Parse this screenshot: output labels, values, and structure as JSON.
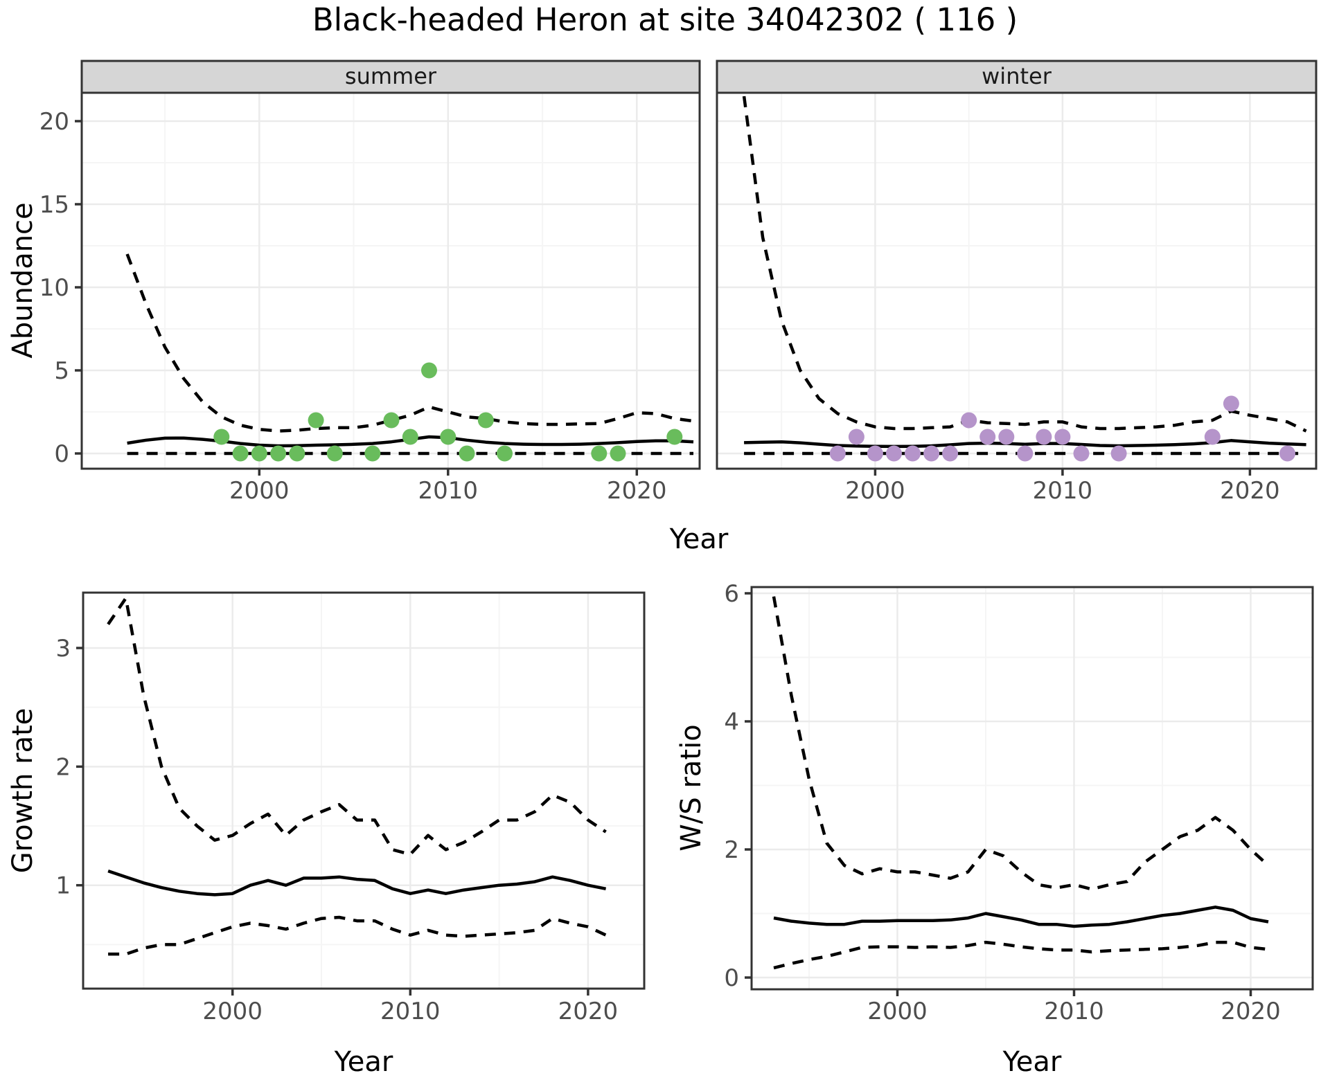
{
  "title": "Black-headed Heron at site 34042302 ( 116 )",
  "shared_x_label": "Year",
  "colors": {
    "summer_points": "#69bc5c",
    "winter_points": "#b594ca",
    "fit_line": "#000000",
    "strip_fill": "#d6d6d6",
    "panel_border": "#333333",
    "grid_major": "#ebebeb",
    "grid_minor": "#f5f5f5",
    "tick_text": "#4d4d4d"
  },
  "chart_data": [
    {
      "id": "abundance-summer",
      "type": "scatter",
      "facet": "summer",
      "xlabel": "Year",
      "ylabel": "Abundance",
      "x_ticks": [
        2000,
        2010,
        2020
      ],
      "y_ticks": [
        0,
        5,
        10,
        15,
        20
      ],
      "ylim": [
        0,
        21.5
      ],
      "grid": true,
      "points": {
        "x": [
          1998,
          1999,
          2000,
          2001,
          2002,
          2003,
          2004,
          2006,
          2007,
          2008,
          2009,
          2010,
          2011,
          2012,
          2013,
          2018,
          2019,
          2022
        ],
        "y": [
          1,
          0,
          0,
          0,
          0,
          2,
          0,
          0,
          2,
          1,
          5,
          1,
          0,
          2,
          0,
          0,
          0,
          1
        ]
      },
      "years": [
        1993,
        1994,
        1995,
        1996,
        1997,
        1998,
        1999,
        2000,
        2001,
        2002,
        2003,
        2004,
        2005,
        2006,
        2007,
        2008,
        2009,
        2010,
        2011,
        2012,
        2013,
        2014,
        2015,
        2016,
        2017,
        2018,
        2019,
        2020,
        2021,
        2022,
        2023
      ],
      "series": [
        {
          "name": "median",
          "style": "solid",
          "values": [
            0.62,
            0.8,
            0.92,
            0.93,
            0.85,
            0.74,
            0.6,
            0.5,
            0.46,
            0.47,
            0.5,
            0.52,
            0.55,
            0.6,
            0.7,
            0.85,
            1.0,
            0.95,
            0.8,
            0.68,
            0.6,
            0.56,
            0.54,
            0.54,
            0.56,
            0.6,
            0.65,
            0.72,
            0.76,
            0.76,
            0.7
          ]
        },
        {
          "name": "upper_95ci",
          "style": "dashed",
          "values": [
            12.0,
            9.0,
            6.4,
            4.5,
            3.1,
            2.2,
            1.7,
            1.45,
            1.35,
            1.4,
            1.5,
            1.55,
            1.55,
            1.7,
            2.0,
            2.3,
            2.8,
            2.5,
            2.2,
            2.1,
            1.9,
            1.8,
            1.75,
            1.75,
            1.78,
            1.8,
            2.1,
            2.45,
            2.4,
            2.1,
            1.95
          ]
        },
        {
          "name": "lower_95ci",
          "style": "dashed",
          "values": [
            0,
            0,
            0,
            0,
            0,
            0,
            0,
            0,
            0,
            0,
            0,
            0,
            0,
            0,
            0,
            0,
            0,
            0,
            0,
            0,
            0,
            0,
            0,
            0,
            0,
            0,
            0,
            0,
            0,
            0,
            0
          ]
        }
      ]
    },
    {
      "id": "abundance-winter",
      "type": "scatter",
      "facet": "winter",
      "xlabel": "Year",
      "ylabel": "Abundance",
      "x_ticks": [
        2000,
        2010,
        2020
      ],
      "y_ticks": [
        0,
        5,
        10,
        15,
        20
      ],
      "ylim": [
        0,
        21.5
      ],
      "grid": true,
      "points": {
        "x": [
          1998,
          1999,
          2000,
          2001,
          2002,
          2003,
          2004,
          2005,
          2006,
          2007,
          2008,
          2009,
          2010,
          2011,
          2013,
          2018,
          2019,
          2022
        ],
        "y": [
          0,
          1,
          0,
          0,
          0,
          0,
          0,
          2,
          1,
          1,
          0,
          1,
          1,
          0,
          0,
          1,
          3,
          0
        ]
      },
      "years": [
        1993,
        1994,
        1995,
        1996,
        1997,
        1998,
        1999,
        2000,
        2001,
        2002,
        2003,
        2004,
        2005,
        2006,
        2007,
        2008,
        2009,
        2010,
        2011,
        2012,
        2013,
        2014,
        2015,
        2016,
        2017,
        2018,
        2019,
        2020,
        2021,
        2022,
        2023
      ],
      "series": [
        {
          "name": "median",
          "style": "solid",
          "values": [
            0.65,
            0.68,
            0.7,
            0.64,
            0.56,
            0.48,
            0.45,
            0.43,
            0.42,
            0.43,
            0.46,
            0.52,
            0.6,
            0.62,
            0.6,
            0.55,
            0.6,
            0.6,
            0.54,
            0.48,
            0.46,
            0.48,
            0.5,
            0.53,
            0.58,
            0.65,
            0.78,
            0.7,
            0.62,
            0.57,
            0.53
          ]
        },
        {
          "name": "upper_95ci",
          "style": "dashed",
          "values": [
            21.5,
            13.0,
            8.0,
            5.0,
            3.3,
            2.4,
            1.9,
            1.6,
            1.5,
            1.5,
            1.55,
            1.6,
            2.0,
            1.85,
            1.8,
            1.75,
            1.9,
            1.9,
            1.6,
            1.5,
            1.5,
            1.55,
            1.6,
            1.7,
            1.9,
            2.0,
            2.55,
            2.3,
            2.1,
            1.9,
            1.35
          ]
        },
        {
          "name": "lower_95ci",
          "style": "dashed",
          "values": [
            0,
            0,
            0,
            0,
            0,
            0,
            0,
            0,
            0,
            0,
            0,
            0,
            0,
            0,
            0,
            0,
            0,
            0,
            0,
            0,
            0,
            0,
            0,
            0,
            0,
            0,
            0,
            0,
            0,
            0,
            0
          ]
        }
      ]
    },
    {
      "id": "growth-rate",
      "type": "line",
      "facet": null,
      "xlabel": "Year",
      "ylabel": "Growth rate",
      "x_ticks": [
        2000,
        2010,
        2020
      ],
      "y_ticks": [
        1,
        2,
        3
      ],
      "ylim": [
        0.13,
        3.45
      ],
      "grid": true,
      "years": [
        1993,
        1994,
        1995,
        1996,
        1997,
        1998,
        1999,
        2000,
        2001,
        2002,
        2003,
        2004,
        2005,
        2006,
        2007,
        2008,
        2009,
        2010,
        2011,
        2012,
        2013,
        2014,
        2015,
        2016,
        2017,
        2018,
        2019,
        2020,
        2021
      ],
      "series": [
        {
          "name": "median",
          "style": "solid",
          "values": [
            1.12,
            1.07,
            1.02,
            0.98,
            0.95,
            0.93,
            0.92,
            0.93,
            1.0,
            1.04,
            1.0,
            1.06,
            1.06,
            1.07,
            1.05,
            1.04,
            0.97,
            0.93,
            0.96,
            0.93,
            0.96,
            0.98,
            1.0,
            1.01,
            1.03,
            1.07,
            1.04,
            1.0,
            0.97
          ]
        },
        {
          "name": "upper_95ci",
          "style": "dashed",
          "values": [
            3.2,
            3.42,
            2.6,
            2.0,
            1.65,
            1.5,
            1.38,
            1.42,
            1.52,
            1.6,
            1.42,
            1.55,
            1.62,
            1.68,
            1.55,
            1.55,
            1.3,
            1.26,
            1.42,
            1.3,
            1.36,
            1.45,
            1.55,
            1.55,
            1.62,
            1.76,
            1.7,
            1.55,
            1.45
          ]
        },
        {
          "name": "lower_95ci",
          "style": "dashed",
          "values": [
            0.42,
            0.42,
            0.47,
            0.5,
            0.5,
            0.55,
            0.6,
            0.65,
            0.68,
            0.66,
            0.63,
            0.68,
            0.72,
            0.73,
            0.7,
            0.7,
            0.63,
            0.58,
            0.62,
            0.58,
            0.57,
            0.58,
            0.59,
            0.6,
            0.62,
            0.72,
            0.68,
            0.65,
            0.58
          ]
        }
      ]
    },
    {
      "id": "ws-ratio",
      "type": "line",
      "facet": null,
      "xlabel": "Year",
      "ylabel": "W/S ratio",
      "x_ticks": [
        2000,
        2010,
        2020
      ],
      "y_ticks": [
        0,
        2,
        4,
        6
      ],
      "ylim": [
        -0.2,
        6.3
      ],
      "grid": true,
      "years": [
        1993,
        1994,
        1995,
        1996,
        1997,
        1998,
        1999,
        2000,
        2001,
        2002,
        2003,
        2004,
        2005,
        2006,
        2007,
        2008,
        2009,
        2010,
        2011,
        2012,
        2013,
        2014,
        2015,
        2016,
        2017,
        2018,
        2019,
        2020,
        2021
      ],
      "series": [
        {
          "name": "median",
          "style": "solid",
          "values": [
            0.93,
            0.88,
            0.85,
            0.83,
            0.83,
            0.88,
            0.88,
            0.89,
            0.89,
            0.89,
            0.9,
            0.93,
            1.0,
            0.95,
            0.9,
            0.83,
            0.83,
            0.8,
            0.82,
            0.83,
            0.87,
            0.92,
            0.97,
            1.0,
            1.05,
            1.1,
            1.05,
            0.92,
            0.87
          ]
        },
        {
          "name": "upper_95ci",
          "style": "dashed",
          "values": [
            5.95,
            4.4,
            3.1,
            2.1,
            1.75,
            1.62,
            1.7,
            1.65,
            1.65,
            1.6,
            1.55,
            1.65,
            2.0,
            1.9,
            1.65,
            1.45,
            1.4,
            1.45,
            1.38,
            1.45,
            1.5,
            1.8,
            2.0,
            2.2,
            2.3,
            2.5,
            2.3,
            2.0,
            1.75
          ]
        },
        {
          "name": "lower_95ci",
          "style": "dashed",
          "values": [
            0.15,
            0.22,
            0.28,
            0.33,
            0.4,
            0.47,
            0.48,
            0.48,
            0.47,
            0.48,
            0.47,
            0.5,
            0.55,
            0.52,
            0.48,
            0.45,
            0.43,
            0.43,
            0.4,
            0.42,
            0.43,
            0.44,
            0.45,
            0.47,
            0.5,
            0.55,
            0.55,
            0.47,
            0.44
          ]
        }
      ]
    }
  ]
}
